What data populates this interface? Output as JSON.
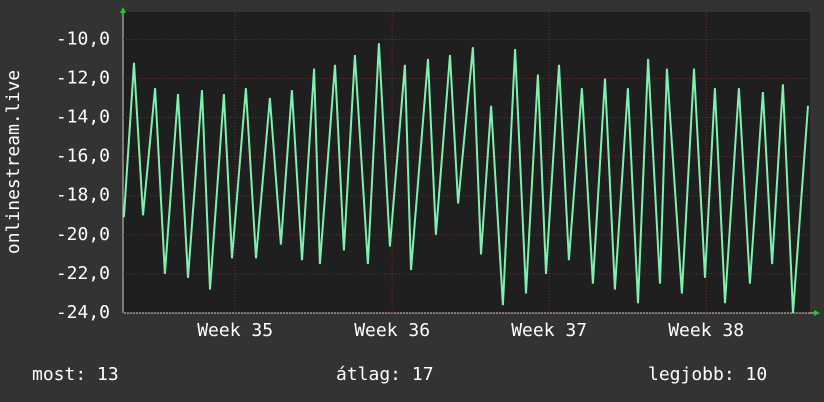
{
  "chart_data": {
    "type": "line",
    "y_label": "onlinestream.live",
    "x": [
      0.04,
      0.49,
      0.89,
      1.43,
      1.87,
      2.45,
      2.9,
      3.52,
      3.88,
      4.5,
      4.86,
      5.48,
      5.93,
      6.55,
      7.04,
      7.53,
      7.98,
      8.52,
      8.78,
      9.45,
      9.85,
      10.34,
      10.92,
      11.41,
      11.9,
      12.57,
      12.84,
      13.6,
      13.95,
      14.58,
      14.94,
      15.6,
      15.96,
      16.41,
      16.94,
      17.48,
      17.97,
      18.5,
      18.86,
      19.44,
      19.88,
      20.46,
      20.95,
      21.49,
      21.93,
      22.51,
      22.96,
      23.41,
      23.94,
      24.25,
      24.92,
      25.46,
      25.95,
      26.39,
      26.84,
      27.46,
      27.95,
      28.53,
      28.94,
      29.42,
      29.87,
      30.54
    ],
    "series": [
      {
        "color": "#80f0b0",
        "values": [
          -19.1,
          -11.2,
          -19,
          -12.5,
          -22,
          -12.8,
          -22.2,
          -12.6,
          -22.8,
          -12.8,
          -21.2,
          -12.5,
          -21.2,
          -13,
          -20.5,
          -12.6,
          -21.3,
          -11.5,
          -21.5,
          -11.3,
          -20.8,
          -10.8,
          -21.5,
          -10.2,
          -20.6,
          -11.3,
          -21.8,
          -11,
          -20,
          -10.8,
          -18.4,
          -10.4,
          -21,
          -13.4,
          -23.6,
          -10.5,
          -23,
          -11.8,
          -22,
          -11.3,
          -21.3,
          -12.5,
          -22.5,
          -12,
          -22.8,
          -12.5,
          -23.5,
          -11,
          -22.5,
          -11.5,
          -23,
          -11.5,
          -22.2,
          -12.5,
          -23.5,
          -12.5,
          -22.5,
          -12.7,
          -21.5,
          -12.3,
          -24,
          -13.4
        ]
      }
    ],
    "xlim": [
      0,
      30.63
    ],
    "xticks": [
      {
        "value": 5,
        "label": "Week 35"
      },
      {
        "value": 12,
        "label": "Week 36"
      },
      {
        "value": 19,
        "label": "Week 37"
      },
      {
        "value": 26,
        "label": "Week 38"
      }
    ],
    "ylim": [
      -24,
      -8.6
    ],
    "yticks": [
      {
        "value": -24,
        "label": "-24,0"
      },
      {
        "value": -22,
        "label": "-22,0"
      },
      {
        "value": -20,
        "label": "-20,0"
      },
      {
        "value": -18,
        "label": "-18,0"
      },
      {
        "value": -16,
        "label": "-16,0"
      },
      {
        "value": -14,
        "label": "-14,0"
      },
      {
        "value": -12,
        "label": "-12,0"
      },
      {
        "value": -10,
        "label": "-10,0"
      }
    ],
    "grid": true,
    "grid_color": "#7a2a2a",
    "stats": [
      "most: 13",
      "átlag: 17",
      "legjobb: 10"
    ]
  }
}
